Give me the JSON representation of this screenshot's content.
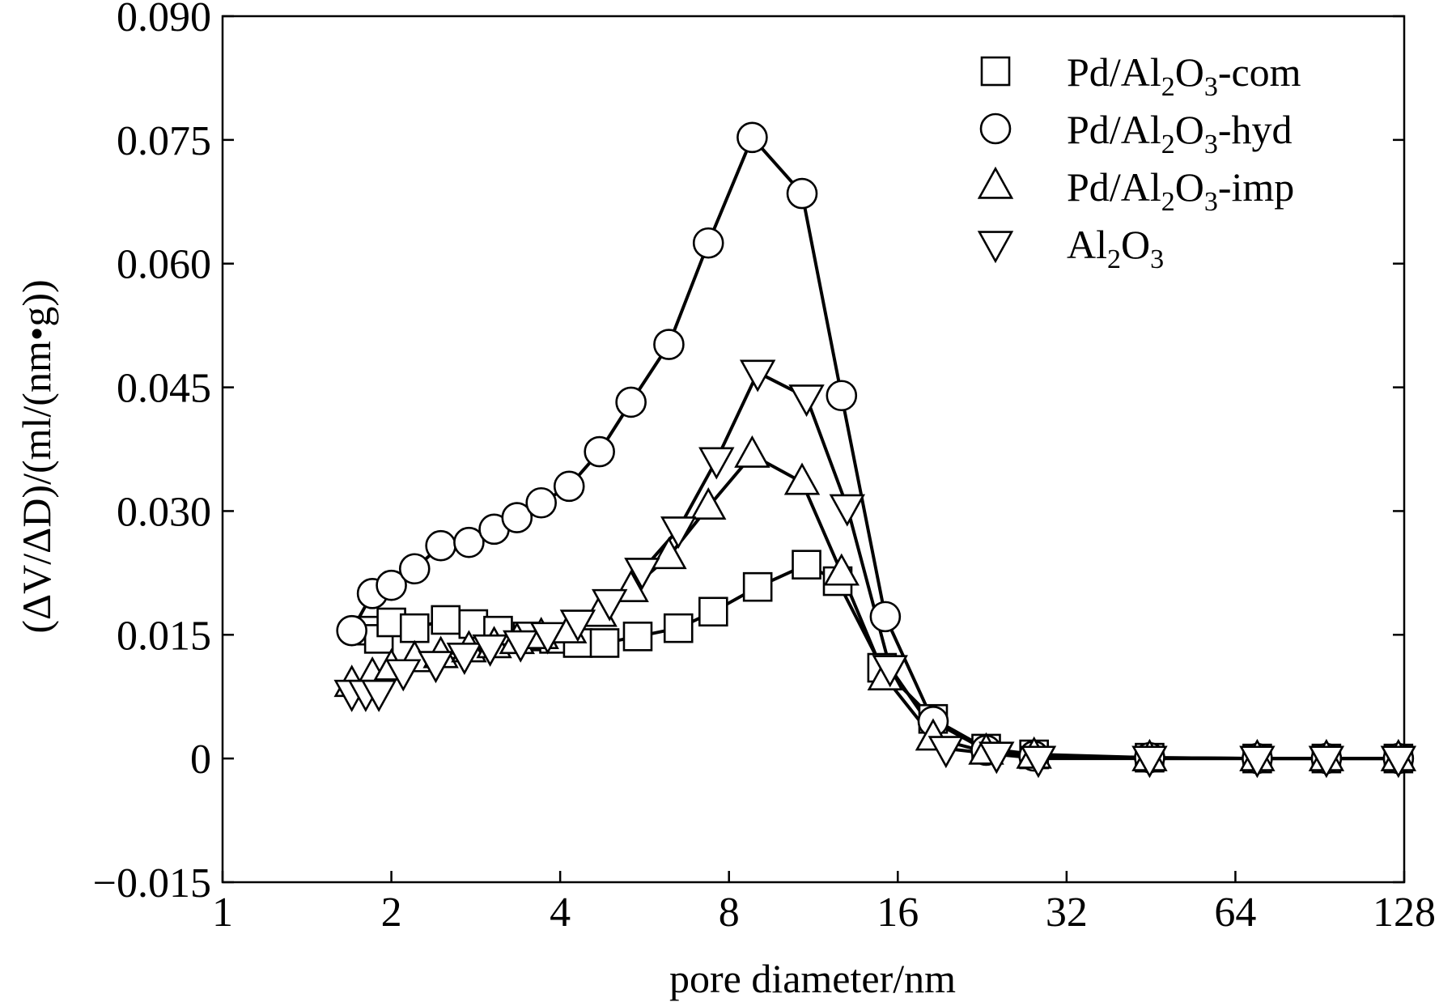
{
  "chart_data": {
    "type": "line",
    "x_scale": "log2",
    "xlabel": "pore diameter/nm",
    "ylabel": "(ΔV/ΔD)/(ml/(nm•g))",
    "xlim": [
      1,
      128
    ],
    "ylim": [
      -0.015,
      0.09
    ],
    "x_ticks": [
      1,
      2,
      4,
      8,
      16,
      32,
      64,
      128
    ],
    "x_tick_labels": [
      "1",
      "2",
      "4",
      "8",
      "16",
      "32",
      "64",
      "128"
    ],
    "y_ticks": [
      -0.015,
      0,
      0.015,
      0.03,
      0.045,
      0.06,
      0.075,
      0.09
    ],
    "y_tick_labels": [
      "−0.015",
      "0",
      "0.015",
      "0.030",
      "0.045",
      "0.060",
      "0.075",
      "0.090"
    ],
    "grid": false,
    "legend_position": "top-right",
    "series": [
      {
        "name": "Pd/Al2O3-com",
        "marker": "square",
        "legend": {
          "a": "Pd",
          "b": "/Al",
          "s1": "2",
          "c": "O",
          "s2": "3",
          "d": "-com"
        },
        "x": [
          1.8,
          1.9,
          2.0,
          2.2,
          2.5,
          2.8,
          3.1,
          3.5,
          3.9,
          4.3,
          4.8,
          5.5,
          6.5,
          7.5,
          9.0,
          11.0,
          12.5,
          15.0,
          18.5,
          23.0,
          28.0,
          45.0,
          70.0,
          93.0,
          125.0
        ],
        "y": [
          0.0155,
          0.0145,
          0.0165,
          0.0158,
          0.0168,
          0.0163,
          0.0155,
          0.0148,
          0.0145,
          0.014,
          0.014,
          0.0148,
          0.0158,
          0.0178,
          0.0208,
          0.0235,
          0.0215,
          0.011,
          0.0048,
          0.0012,
          0.0005,
          0.0001,
          0.0,
          0.0,
          0.0
        ]
      },
      {
        "name": "Pd/Al2O3-hyd",
        "marker": "circle",
        "legend": {
          "a": "Pd",
          "b": "/Al",
          "s1": "2",
          "c": "O",
          "s2": "3",
          "d": "-hyd"
        },
        "x": [
          1.7,
          1.85,
          2.0,
          2.2,
          2.45,
          2.75,
          3.05,
          3.35,
          3.7,
          4.15,
          4.7,
          5.35,
          6.25,
          7.35,
          8.8,
          10.8,
          12.7,
          15.2,
          18.5,
          23.0,
          28.0,
          45.0,
          70.0,
          93.0,
          125.0
        ],
        "y": [
          0.0155,
          0.02,
          0.021,
          0.023,
          0.0258,
          0.0262,
          0.0278,
          0.0292,
          0.031,
          0.033,
          0.0372,
          0.0432,
          0.0502,
          0.0625,
          0.0753,
          0.0685,
          0.044,
          0.0172,
          0.0045,
          0.001,
          0.0003,
          0.0001,
          0.0,
          0.0,
          0.0
        ]
      },
      {
        "name": "Pd/Al2O3-imp",
        "marker": "triangle-up",
        "legend": {
          "a": "Pd",
          "b": "/Al",
          "s1": "2",
          "c": "O",
          "s2": "3",
          "d": "-imp"
        },
        "x": [
          1.7,
          1.85,
          2.0,
          2.2,
          2.45,
          2.75,
          3.05,
          3.35,
          3.7,
          4.15,
          4.7,
          5.35,
          6.25,
          7.35,
          8.8,
          10.8,
          12.7,
          15.2,
          18.5,
          23.0,
          28.0,
          45.0,
          70.0,
          93.0,
          125.0
        ],
        "y": [
          0.009,
          0.01,
          0.011,
          0.012,
          0.0125,
          0.0132,
          0.0137,
          0.0142,
          0.0148,
          0.0155,
          0.0175,
          0.0205,
          0.0245,
          0.0305,
          0.0368,
          0.0335,
          0.0225,
          0.0098,
          0.0025,
          0.0008,
          0.0003,
          0.0,
          0.0,
          0.0,
          0.0
        ]
      },
      {
        "name": "Al2O3",
        "marker": "triangle-down",
        "legend": {
          "a": "",
          "b": "Al",
          "s1": "2",
          "c": "O",
          "s2": "3",
          "d": ""
        },
        "x": [
          1.7,
          1.8,
          1.9,
          2.1,
          2.4,
          2.7,
          3.0,
          3.4,
          3.8,
          4.3,
          4.9,
          5.6,
          6.5,
          7.6,
          9.0,
          11.0,
          13.0,
          15.5,
          19.5,
          24.0,
          28.5,
          45.0,
          70.0,
          93.0,
          125.0
        ],
        "y": [
          0.008,
          0.008,
          0.008,
          0.0105,
          0.0115,
          0.0125,
          0.0135,
          0.014,
          0.015,
          0.0165,
          0.019,
          0.0228,
          0.0278,
          0.0362,
          0.0468,
          0.0438,
          0.0305,
          0.011,
          0.0012,
          0.0005,
          0.0,
          0.0,
          0.0,
          0.0,
          0.0
        ]
      }
    ]
  }
}
